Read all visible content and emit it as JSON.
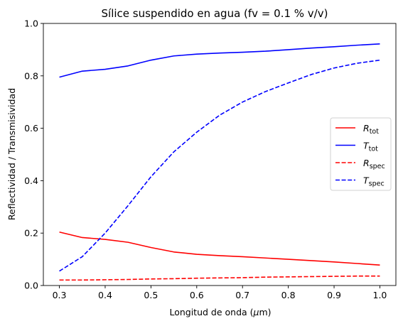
{
  "chart_data": {
    "type": "line",
    "title": "Sílice suspendido en agua (fv = 0.1 % v/v)",
    "xlabel_prefix": "Longitud de onda (",
    "xlabel_unit": "μ",
    "xlabel_suffix": "m)",
    "ylabel": "Reflectividad / Transmisividad",
    "xlim": [
      0.265,
      1.035
    ],
    "ylim": [
      0.0,
      1.0
    ],
    "xticks": [
      0.3,
      0.4,
      0.5,
      0.6,
      0.7,
      0.8,
      0.9,
      1.0
    ],
    "xtick_labels": [
      "0.3",
      "0.4",
      "0.5",
      "0.6",
      "0.7",
      "0.8",
      "0.9",
      "1.0"
    ],
    "yticks": [
      0.0,
      0.2,
      0.4,
      0.6,
      0.8,
      1.0
    ],
    "ytick_labels": [
      "0.0",
      "0.2",
      "0.4",
      "0.6",
      "0.8",
      "1.0"
    ],
    "grid": false,
    "legend_position": "center-right",
    "x": [
      0.3,
      0.35,
      0.4,
      0.45,
      0.5,
      0.55,
      0.6,
      0.65,
      0.7,
      0.75,
      0.8,
      0.85,
      0.9,
      0.95,
      1.0
    ],
    "series": [
      {
        "label_main": "R",
        "label_sub": "tot",
        "color": "#ff0000",
        "dash": "solid",
        "values": [
          0.204,
          0.183,
          0.176,
          0.165,
          0.145,
          0.128,
          0.119,
          0.114,
          0.11,
          0.105,
          0.1,
          0.095,
          0.09,
          0.084,
          0.078
        ]
      },
      {
        "label_main": "T",
        "label_sub": "tot",
        "color": "#0000ff",
        "dash": "solid",
        "values": [
          0.795,
          0.818,
          0.825,
          0.838,
          0.86,
          0.876,
          0.883,
          0.887,
          0.89,
          0.894,
          0.9,
          0.906,
          0.911,
          0.917,
          0.922
        ]
      },
      {
        "label_main": "R",
        "label_sub": "spec",
        "color": "#ff0000",
        "dash": "dashed",
        "values": [
          0.021,
          0.021,
          0.022,
          0.023,
          0.025,
          0.026,
          0.028,
          0.029,
          0.03,
          0.032,
          0.033,
          0.034,
          0.035,
          0.036,
          0.036
        ]
      },
      {
        "label_main": "T",
        "label_sub": "spec",
        "color": "#0000ff",
        "dash": "dashed",
        "values": [
          0.055,
          0.11,
          0.2,
          0.305,
          0.415,
          0.51,
          0.585,
          0.65,
          0.7,
          0.74,
          0.773,
          0.805,
          0.83,
          0.848,
          0.86
        ]
      }
    ]
  }
}
